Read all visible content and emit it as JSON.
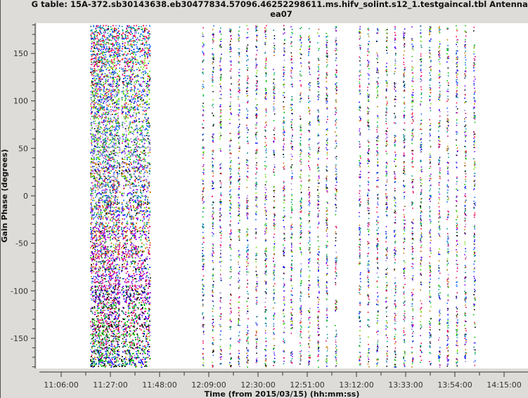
{
  "title": {
    "line1": "G table: 15A-372.sb30143638.eb30477834.57096.46252298611.ms.hifv_solint.s12_1.testgaincal.tbl   Antenna:",
    "line2": "ea07"
  },
  "chart_data": {
    "type": "scatter",
    "xlabel": "Time (from 2015/03/15) (hh:mm:ss)",
    "ylabel": "Gain Phase (degrees)",
    "xlim": [
      "10:55:30",
      "14:25:12"
    ],
    "ylim": [
      -180,
      180
    ],
    "xticks": [
      "11:06:00",
      "11:27:00",
      "11:48:00",
      "12:09:00",
      "12:30:00",
      "12:51:00",
      "13:12:00",
      "13:33:00",
      "13:54:00",
      "14:15:00"
    ],
    "yticks": [
      -150,
      -100,
      -50,
      0,
      50,
      100,
      150
    ],
    "grid": false,
    "legend": "none",
    "point_colors": [
      "#0000ff",
      "#00c000",
      "#000000",
      "#e0006e",
      "#8000ff",
      "#c87800",
      "#008080",
      "#a078e0",
      "#70e000",
      "#1060ff",
      "#ff0040",
      "#00a0a0"
    ],
    "dense_blocks": [
      {
        "start": "11:18:18",
        "end": "11:30:54",
        "yrange": [
          -180,
          180
        ]
      },
      {
        "start": "11:31:30",
        "end": "11:43:48",
        "yrange": [
          -180,
          180
        ]
      }
    ],
    "scan_times": [
      "12:06:18",
      "12:10:30",
      "12:13:48",
      "12:18:00",
      "12:21:36",
      "12:25:12",
      "12:29:06",
      "12:33:00",
      "12:36:36",
      "12:40:48",
      "12:44:06",
      "12:48:00",
      "12:51:36",
      "12:55:30",
      "12:59:06",
      "13:03:00",
      "13:13:12",
      "13:16:48",
      "13:20:42",
      "13:24:36",
      "13:28:12",
      "13:32:06",
      "13:35:42",
      "13:39:18",
      "13:43:12",
      "13:47:06",
      "13:50:42",
      "13:54:36",
      "13:58:12",
      "14:02:06"
    ],
    "scan_yrange": [
      -180,
      180
    ]
  }
}
